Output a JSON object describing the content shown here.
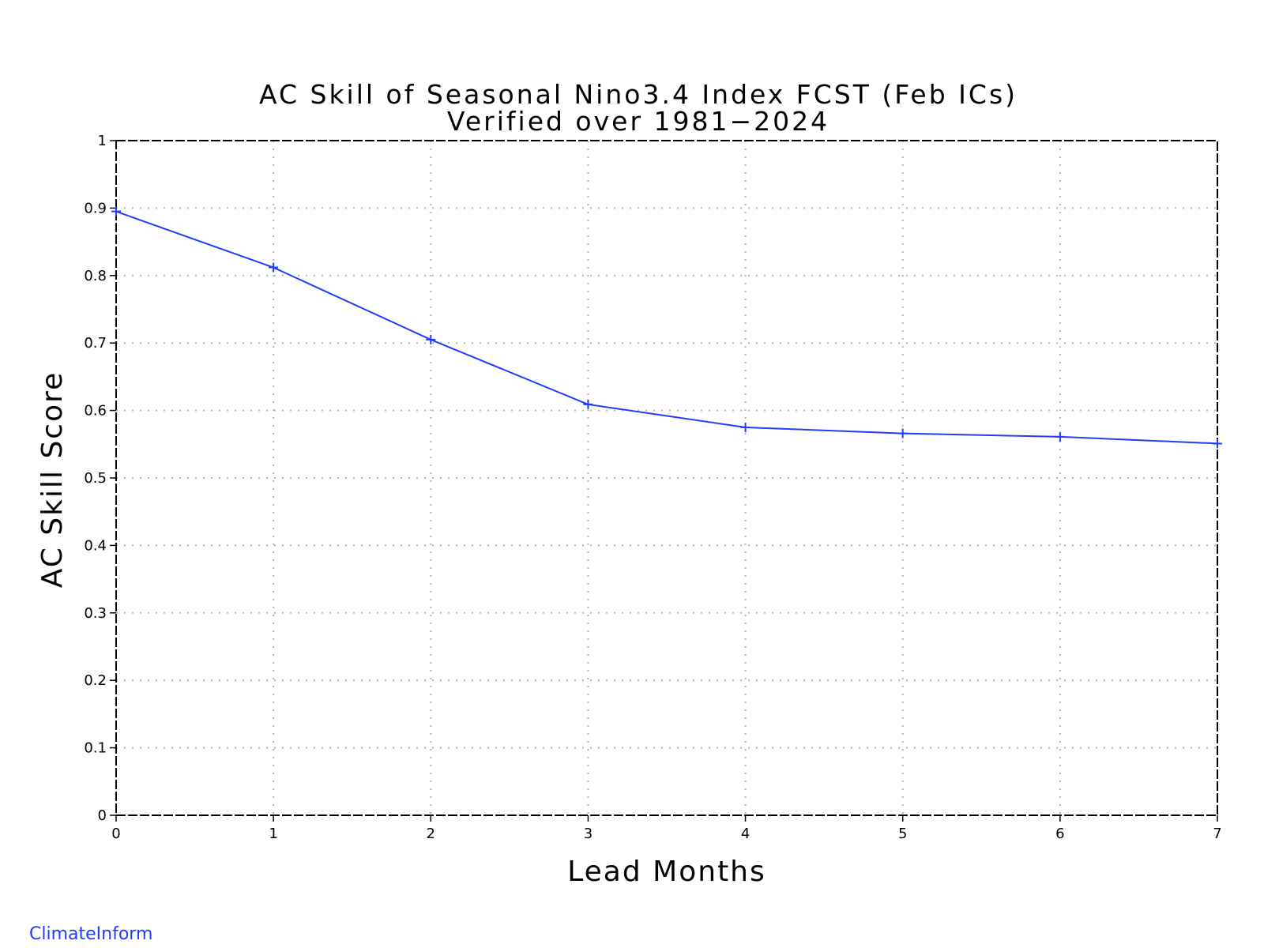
{
  "chart_data": {
    "type": "line",
    "title": "AC Skill of Seasonal Nino3.4 Index FCST (Feb ICs)",
    "subtitle": "Verified over 1981−2024",
    "xlabel": "Lead Months",
    "ylabel": "AC Skill Score",
    "xlim": [
      0,
      7
    ],
    "ylim": [
      0,
      1
    ],
    "x_ticks": [
      "0",
      "1",
      "2",
      "3",
      "4",
      "5",
      "6",
      "7"
    ],
    "y_ticks": [
      "0",
      "0.1",
      "0.2",
      "0.3",
      "0.4",
      "0.5",
      "0.6",
      "0.7",
      "0.8",
      "0.9",
      "1"
    ],
    "grid": true,
    "x": [
      0,
      1,
      2,
      3,
      4,
      5,
      6,
      7
    ],
    "series": [
      {
        "values": [
          0.895,
          0.812,
          0.705,
          0.609,
          0.575,
          0.566,
          0.561,
          0.551
        ]
      }
    ]
  },
  "footer": {
    "credit": "ClimateInform"
  },
  "colors": {
    "series": "#1f3cff",
    "credit": "#1f3cff",
    "frame": "#000000",
    "grid": "#b5b5b5"
  }
}
